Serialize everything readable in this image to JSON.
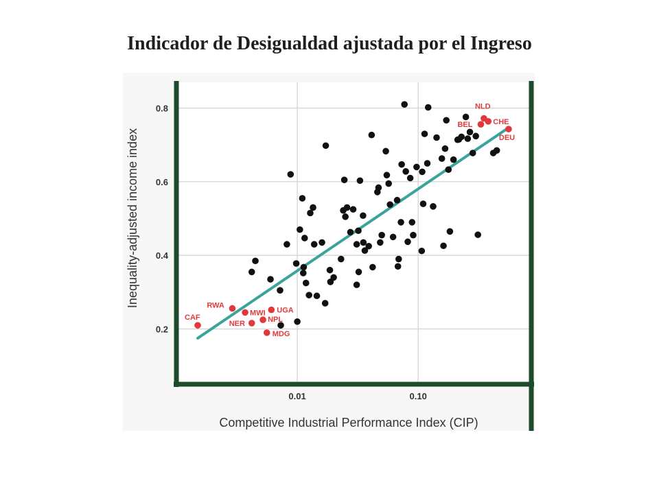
{
  "page": {
    "title": "Indicador de Desigualdad ajustada por el Ingreso"
  },
  "colors": {
    "frame": "#1e4a2e",
    "grid": "#d4d4d4",
    "trend": "#3aa39b",
    "point": "#111111",
    "highlight": "#e0393b",
    "text": "#333333"
  },
  "chart_data": {
    "type": "scatter",
    "xlabel": "Competitive Industrial Performance Index (CIP)",
    "ylabel": "Inequality-adjusted income index",
    "xscale": "log",
    "xlim": [
      0.001,
      0.83
    ],
    "ylim": [
      0.05,
      0.87
    ],
    "xticks": [
      {
        "v": 0.01,
        "label": "0.01"
      },
      {
        "v": 0.1,
        "label": "0.10"
      }
    ],
    "yticks": [
      {
        "v": 0.2,
        "label": "0.2"
      },
      {
        "v": 0.4,
        "label": "0.4"
      },
      {
        "v": 0.6,
        "label": "0.6"
      },
      {
        "v": 0.8,
        "label": "0.8"
      }
    ],
    "grid": true,
    "trendline": {
      "from": [
        0.0015,
        0.175
      ],
      "to": [
        0.55,
        0.745
      ]
    },
    "highlighted": [
      {
        "label": "CAF",
        "x": 0.0015,
        "y": 0.21
      },
      {
        "label": "RWA",
        "x": 0.0029,
        "y": 0.256
      },
      {
        "label": "MWI",
        "x": 0.0037,
        "y": 0.245
      },
      {
        "label": "NER",
        "x": 0.0042,
        "y": 0.216
      },
      {
        "label": "NPL",
        "x": 0.0052,
        "y": 0.225
      },
      {
        "label": "UGA",
        "x": 0.0061,
        "y": 0.252
      },
      {
        "label": "MDG",
        "x": 0.0056,
        "y": 0.19
      },
      {
        "label": "NLD",
        "x": 0.35,
        "y": 0.772
      },
      {
        "label": "BEL",
        "x": 0.33,
        "y": 0.756
      },
      {
        "label": "CHE",
        "x": 0.38,
        "y": 0.764
      },
      {
        "label": "DEU",
        "x": 0.56,
        "y": 0.743
      }
    ],
    "points": [
      {
        "x": 0.0045,
        "y": 0.385
      },
      {
        "x": 0.0042,
        "y": 0.355
      },
      {
        "x": 0.006,
        "y": 0.335
      },
      {
        "x": 0.0072,
        "y": 0.305
      },
      {
        "x": 0.0073,
        "y": 0.21
      },
      {
        "x": 0.0082,
        "y": 0.43
      },
      {
        "x": 0.0088,
        "y": 0.62
      },
      {
        "x": 0.0098,
        "y": 0.378
      },
      {
        "x": 0.01,
        "y": 0.22
      },
      {
        "x": 0.0105,
        "y": 0.47
      },
      {
        "x": 0.011,
        "y": 0.555
      },
      {
        "x": 0.0112,
        "y": 0.352
      },
      {
        "x": 0.0113,
        "y": 0.368
      },
      {
        "x": 0.0115,
        "y": 0.447
      },
      {
        "x": 0.0118,
        "y": 0.325
      },
      {
        "x": 0.0125,
        "y": 0.292
      },
      {
        "x": 0.0128,
        "y": 0.515
      },
      {
        "x": 0.0135,
        "y": 0.53
      },
      {
        "x": 0.0138,
        "y": 0.43
      },
      {
        "x": 0.0145,
        "y": 0.29
      },
      {
        "x": 0.016,
        "y": 0.435
      },
      {
        "x": 0.017,
        "y": 0.27
      },
      {
        "x": 0.0172,
        "y": 0.698
      },
      {
        "x": 0.0186,
        "y": 0.36
      },
      {
        "x": 0.0188,
        "y": 0.328
      },
      {
        "x": 0.02,
        "y": 0.34
      },
      {
        "x": 0.023,
        "y": 0.39
      },
      {
        "x": 0.024,
        "y": 0.522
      },
      {
        "x": 0.0245,
        "y": 0.605
      },
      {
        "x": 0.025,
        "y": 0.505
      },
      {
        "x": 0.0258,
        "y": 0.53
      },
      {
        "x": 0.0275,
        "y": 0.463
      },
      {
        "x": 0.029,
        "y": 0.525
      },
      {
        "x": 0.031,
        "y": 0.43
      },
      {
        "x": 0.031,
        "y": 0.32
      },
      {
        "x": 0.032,
        "y": 0.467
      },
      {
        "x": 0.0322,
        "y": 0.355
      },
      {
        "x": 0.033,
        "y": 0.603
      },
      {
        "x": 0.035,
        "y": 0.508
      },
      {
        "x": 0.0352,
        "y": 0.435
      },
      {
        "x": 0.0362,
        "y": 0.413
      },
      {
        "x": 0.039,
        "y": 0.425
      },
      {
        "x": 0.0412,
        "y": 0.727
      },
      {
        "x": 0.042,
        "y": 0.368
      },
      {
        "x": 0.046,
        "y": 0.572
      },
      {
        "x": 0.047,
        "y": 0.584
      },
      {
        "x": 0.0485,
        "y": 0.435
      },
      {
        "x": 0.05,
        "y": 0.455
      },
      {
        "x": 0.054,
        "y": 0.683
      },
      {
        "x": 0.055,
        "y": 0.618
      },
      {
        "x": 0.057,
        "y": 0.595
      },
      {
        "x": 0.0585,
        "y": 0.538
      },
      {
        "x": 0.062,
        "y": 0.45
      },
      {
        "x": 0.067,
        "y": 0.55
      },
      {
        "x": 0.068,
        "y": 0.37
      },
      {
        "x": 0.069,
        "y": 0.39
      },
      {
        "x": 0.072,
        "y": 0.49
      },
      {
        "x": 0.073,
        "y": 0.647
      },
      {
        "x": 0.077,
        "y": 0.81
      },
      {
        "x": 0.079,
        "y": 0.628
      },
      {
        "x": 0.082,
        "y": 0.437
      },
      {
        "x": 0.086,
        "y": 0.61
      },
      {
        "x": 0.089,
        "y": 0.49
      },
      {
        "x": 0.091,
        "y": 0.455
      },
      {
        "x": 0.097,
        "y": 0.64
      },
      {
        "x": 0.107,
        "y": 0.412
      },
      {
        "x": 0.108,
        "y": 0.627
      },
      {
        "x": 0.11,
        "y": 0.54
      },
      {
        "x": 0.113,
        "y": 0.73
      },
      {
        "x": 0.119,
        "y": 0.65
      },
      {
        "x": 0.121,
        "y": 0.802
      },
      {
        "x": 0.133,
        "y": 0.533
      },
      {
        "x": 0.142,
        "y": 0.72
      },
      {
        "x": 0.157,
        "y": 0.663
      },
      {
        "x": 0.162,
        "y": 0.426
      },
      {
        "x": 0.167,
        "y": 0.69
      },
      {
        "x": 0.171,
        "y": 0.767
      },
      {
        "x": 0.178,
        "y": 0.633
      },
      {
        "x": 0.183,
        "y": 0.465
      },
      {
        "x": 0.196,
        "y": 0.66
      },
      {
        "x": 0.212,
        "y": 0.714
      },
      {
        "x": 0.217,
        "y": 0.715
      },
      {
        "x": 0.228,
        "y": 0.722
      },
      {
        "x": 0.248,
        "y": 0.776
      },
      {
        "x": 0.257,
        "y": 0.717
      },
      {
        "x": 0.268,
        "y": 0.735
      },
      {
        "x": 0.283,
        "y": 0.678
      },
      {
        "x": 0.3,
        "y": 0.724
      },
      {
        "x": 0.312,
        "y": 0.456
      },
      {
        "x": 0.418,
        "y": 0.678
      },
      {
        "x": 0.447,
        "y": 0.685
      }
    ]
  }
}
